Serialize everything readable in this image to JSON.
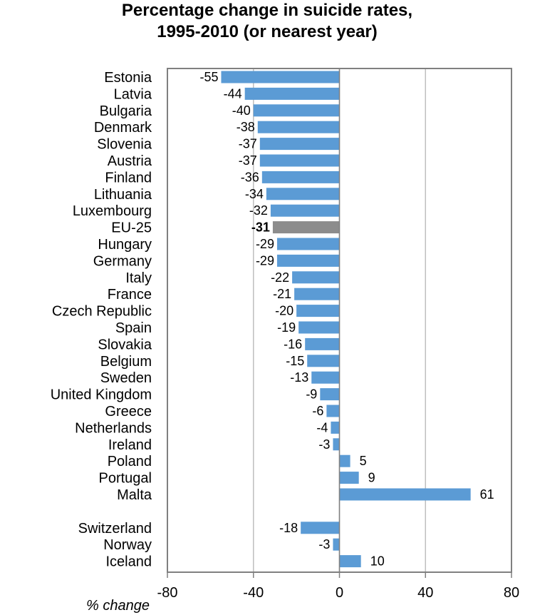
{
  "chart_data": {
    "type": "bar",
    "orientation": "horizontal",
    "title_line1": "Percentage change in suicide rates,",
    "title_line2": "1995-2010 (or nearest year)",
    "xlabel": "% change",
    "ylabel": "",
    "xlim": [
      -80,
      80
    ],
    "xticks": [
      "-80",
      "-40",
      "0",
      "40",
      "80"
    ],
    "grid": true,
    "highlight_category": "EU-25",
    "categories": [
      "Estonia",
      "Latvia",
      "Bulgaria",
      "Denmark",
      "Slovenia",
      "Austria",
      "Finland",
      "Lithuania",
      "Luxembourg",
      "EU-25",
      "Hungary",
      "Germany",
      "Italy",
      "France",
      "Czech Republic",
      "Spain",
      "Slovakia",
      "Belgium",
      "Sweden",
      "United Kingdom",
      "Greece",
      "Netherlands",
      "Ireland",
      "Poland",
      "Portugal",
      "Malta",
      "Switzerland",
      "Norway",
      "Iceland"
    ],
    "values": [
      -55,
      -44,
      -40,
      -38,
      -37,
      -37,
      -36,
      -34,
      -32,
      -31,
      -29,
      -29,
      -22,
      -21,
      -20,
      -19,
      -16,
      -15,
      -13,
      -9,
      -6,
      -4,
      -3,
      5,
      9,
      61,
      -18,
      -3,
      10
    ],
    "value_labels": [
      "-55",
      "-44",
      "-40",
      "-38",
      "-37",
      "-37",
      "-36",
      "-34",
      "-32",
      "-31",
      "-29",
      "-29",
      "-22",
      "-21",
      "-20",
      "-19",
      "-16",
      "-15",
      "-13",
      "-9",
      "-6",
      "-4",
      "-3",
      "5",
      "9",
      "61",
      "-18",
      "-3",
      "10"
    ],
    "group_gap_before": "Switzerland"
  },
  "colors": {
    "bar": "#5b9bd5",
    "highlight_bar": "#8c8c8c",
    "grid": "#bfbfbf",
    "axis": "#808080",
    "text": "#000000"
  }
}
